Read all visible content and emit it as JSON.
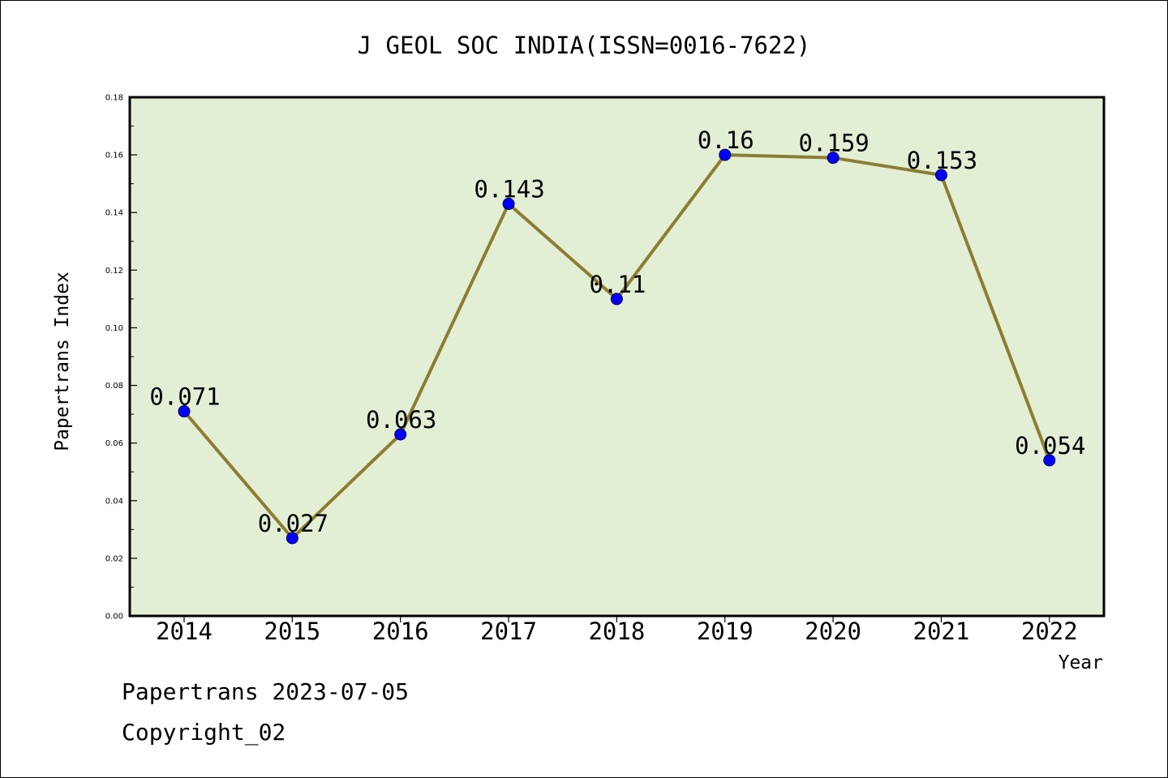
{
  "chart_data": {
    "type": "line",
    "title": "J GEOL SOC INDIA(ISSN=0016-7622)",
    "xlabel": "Year",
    "ylabel": "Papertrans Index",
    "categories": [
      "2014",
      "2015",
      "2016",
      "2017",
      "2018",
      "2019",
      "2020",
      "2021",
      "2022"
    ],
    "values": [
      0.071,
      0.027,
      0.063,
      0.143,
      0.11,
      0.16,
      0.159,
      0.153,
      0.054
    ],
    "data_labels": [
      "0.071",
      "0.027",
      "0.063",
      "0.143",
      "0.11",
      "0.16",
      "0.159",
      "0.153",
      "0.054"
    ],
    "ylim": [
      0,
      0.18
    ],
    "yticks": [
      "0.00",
      "0.02",
      "0.04",
      "0.06",
      "0.08",
      "0.10",
      "0.12",
      "0.14",
      "0.16",
      "0.18"
    ],
    "grid": false,
    "legend": "none",
    "colors": {
      "plot_background": "#e2efd4",
      "line": "#8b7d32",
      "marker": "#0000ff",
      "axes": "#000000"
    }
  },
  "footer": {
    "line1": "Papertrans 2023-07-05",
    "line2": "Copyright_02"
  }
}
